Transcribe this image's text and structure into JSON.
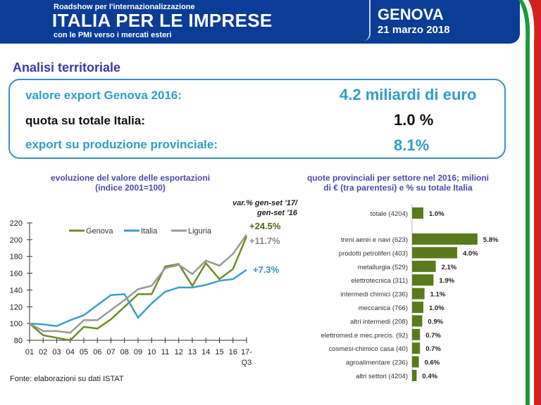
{
  "header": {
    "subtitle": "Roadshow per l'internazionalizzazione",
    "title": "ITALIA PER LE IMPRESE",
    "tagline": "con le PMI verso i mercati esteri",
    "city": "GENOVA",
    "date": "21  marzo  2018"
  },
  "section_title": "Analisi territoriale",
  "summary": {
    "export_label": "valore export Genova 2016:",
    "export_value": "4.2 miliardi di euro",
    "share_label": "quota su totale Italia:",
    "share_value": "1.0 %",
    "prod_label": "export su produzione provinciale:",
    "prod_value": "8.1%"
  },
  "colors": {
    "brand_blue": "#0b3c96",
    "genova": "#6b8e23",
    "italia": "#3aa0c8",
    "liguria": "#999999",
    "bar": "#5a7a1e"
  },
  "source": "Fonte: elaborazioni su dati ISTAT",
  "chart_data": [
    {
      "type": "line",
      "title": "evoluzione del valore delle esportazioni",
      "subtitle": "(indice 2001=100)",
      "note_line1": "var.% gen-set '17/",
      "note_line2": "gen-set '16",
      "x": [
        "01",
        "02",
        "03",
        "04",
        "05",
        "06",
        "07",
        "08",
        "09",
        "10",
        "11",
        "12",
        "13",
        "14",
        "15",
        "16",
        "17-Q3"
      ],
      "ylim": [
        80,
        220
      ],
      "yticks": [
        80,
        100,
        120,
        140,
        160,
        180,
        200,
        220
      ],
      "legend": "top",
      "series": [
        {
          "name": "Genova",
          "color": "#6b8e23",
          "label": "+24.5%",
          "values": [
            100,
            86,
            83,
            80,
            96,
            94,
            105,
            120,
            135,
            135,
            168,
            171,
            145,
            172,
            153,
            165,
            204
          ]
        },
        {
          "name": "Italia",
          "color": "#3aa0c8",
          "label": "+7.3%",
          "values": [
            100,
            99,
            97,
            104,
            110,
            122,
            134,
            135,
            107,
            124,
            138,
            143,
            143,
            146,
            151,
            153,
            164
          ]
        },
        {
          "name": "Liguria",
          "color": "#999999",
          "label": "+11.7%",
          "values": [
            100,
            91,
            91,
            89,
            104,
            104,
            116,
            128,
            141,
            145,
            166,
            170,
            159,
            175,
            169,
            183,
            206
          ]
        }
      ]
    },
    {
      "type": "bar",
      "orientation": "horizontal",
      "title": "quote provinciali per settore nel 2016; milioni",
      "subtitle": "di €  (tra parentesi) e % su totale Italia",
      "categories": [
        "totale (4204)",
        "treni aerei e navi (623)",
        "prodotti petroliferi (403)",
        "metallurgia (529)",
        "elettrotecnica (311)",
        "intermedi chimici (236)",
        "meccanica (766)",
        "altri intermedi (208)",
        "elettromed.e mec.precis. (92)",
        "cosmesi-chimico casa (40)",
        "agroalimentare (236)",
        "altri settori (4204)"
      ],
      "values": [
        1.0,
        5.8,
        4.0,
        2.1,
        1.9,
        1.1,
        1.0,
        0.9,
        0.7,
        0.7,
        0.6,
        0.4
      ],
      "labels": [
        "1.0%",
        "5.8%",
        "4.0%",
        "2.1%",
        "1.9%",
        "1.1%",
        "1.0%",
        "0.9%",
        "0.7%",
        "0.7%",
        "0.6%",
        "0.4%"
      ]
    }
  ]
}
